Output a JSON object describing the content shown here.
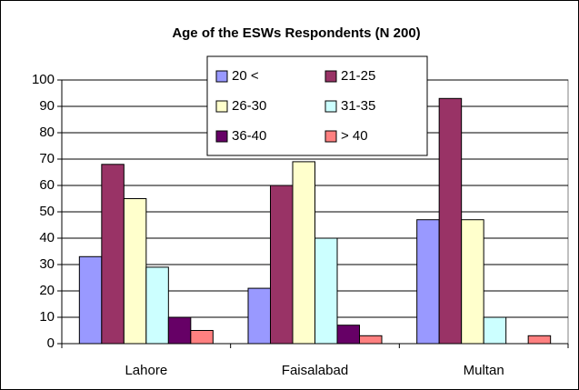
{
  "chart_data": {
    "type": "bar",
    "title": "Age of the ESWs Respondents (N 200)",
    "categories": [
      "Lahore",
      "Faisalabad",
      "Multan"
    ],
    "series": [
      {
        "name": "20 <",
        "color": "#9999ff",
        "values": [
          33,
          21,
          47
        ]
      },
      {
        "name": "21-25",
        "color": "#993366",
        "values": [
          68,
          60,
          93
        ]
      },
      {
        "name": "26-30",
        "color": "#ffffcc",
        "values": [
          55,
          69,
          47
        ]
      },
      {
        "name": "31-35",
        "color": "#ccffff",
        "values": [
          29,
          40,
          10
        ]
      },
      {
        "name": "36-40",
        "color": "#660066",
        "values": [
          10,
          7,
          0
        ]
      },
      {
        "name": "> 40",
        "color": "#ff8080",
        "values": [
          5,
          3,
          3
        ]
      }
    ],
    "ylim": [
      0,
      100
    ],
    "yticks": [
      0,
      10,
      20,
      30,
      40,
      50,
      60,
      70,
      80,
      90,
      100
    ],
    "grid": true,
    "legend": "top"
  }
}
